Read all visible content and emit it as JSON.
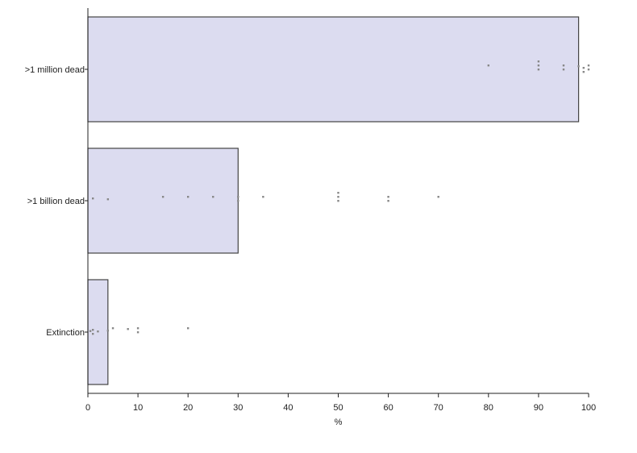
{
  "chart_data": {
    "type": "bar",
    "orientation": "horizontal",
    "title": "",
    "xlabel": "%",
    "ylabel": "",
    "xlim": [
      0,
      100
    ],
    "xticks": [
      0,
      10,
      20,
      30,
      40,
      50,
      60,
      70,
      80,
      90,
      100
    ],
    "categories": [
      ">1 million dead",
      ">1 billion dead",
      "Extinction"
    ],
    "values": [
      98,
      30,
      4
    ],
    "bar_color": "#dcdcf0",
    "bar_edge_color": "#444444",
    "point_color": "#888888",
    "points": [
      [
        80,
        90,
        90,
        90,
        95,
        95,
        98,
        99,
        99,
        100,
        100
      ],
      [
        1,
        4,
        15,
        20,
        25,
        30,
        30,
        35,
        50,
        50,
        50,
        60,
        60,
        70
      ],
      [
        0.5,
        1,
        1,
        2,
        4,
        5,
        8,
        10,
        10,
        20
      ]
    ]
  }
}
